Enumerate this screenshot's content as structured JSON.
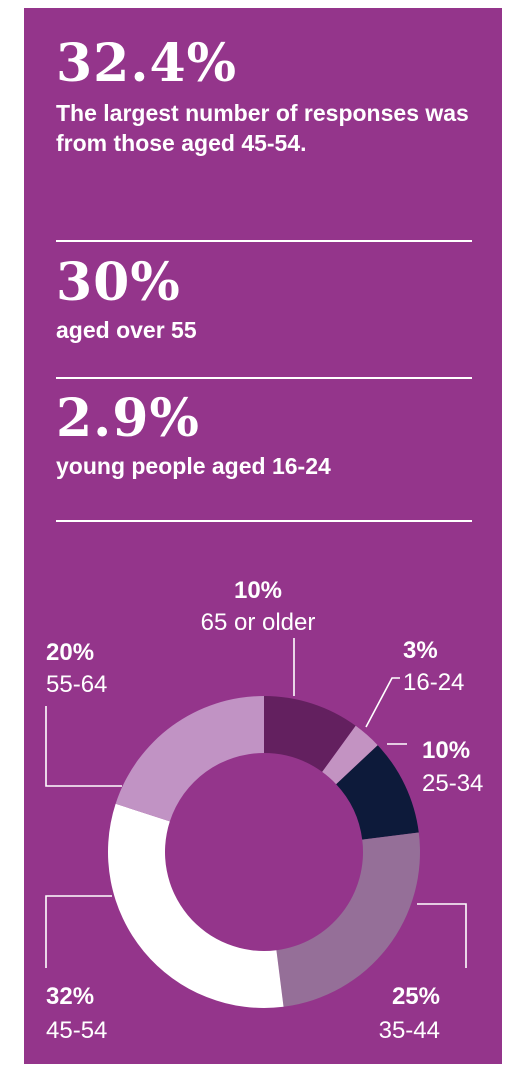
{
  "stats": [
    {
      "value": "32.4%",
      "text": "The largest number of responses was from those aged ",
      "emph": "45-54."
    },
    {
      "value": "30%",
      "text": "aged over ",
      "emph": "55"
    },
    {
      "value": "2.9%",
      "text": "young people aged ",
      "emph": "16-24"
    }
  ],
  "chart_data": {
    "type": "pie",
    "hole": "donut",
    "categories": [
      "65 or older",
      "16-24",
      "25-34",
      "35-44",
      "45-54",
      "55-64"
    ],
    "values": [
      10,
      3,
      10,
      25,
      32,
      20
    ],
    "value_labels": [
      "10%",
      "3%",
      "10%",
      "25%",
      "32%",
      "20%"
    ],
    "colors": [
      "#63205f",
      "#c393c2",
      "#0d1a3a",
      "#956f98",
      "#ffffff",
      "#c193c4"
    ]
  }
}
